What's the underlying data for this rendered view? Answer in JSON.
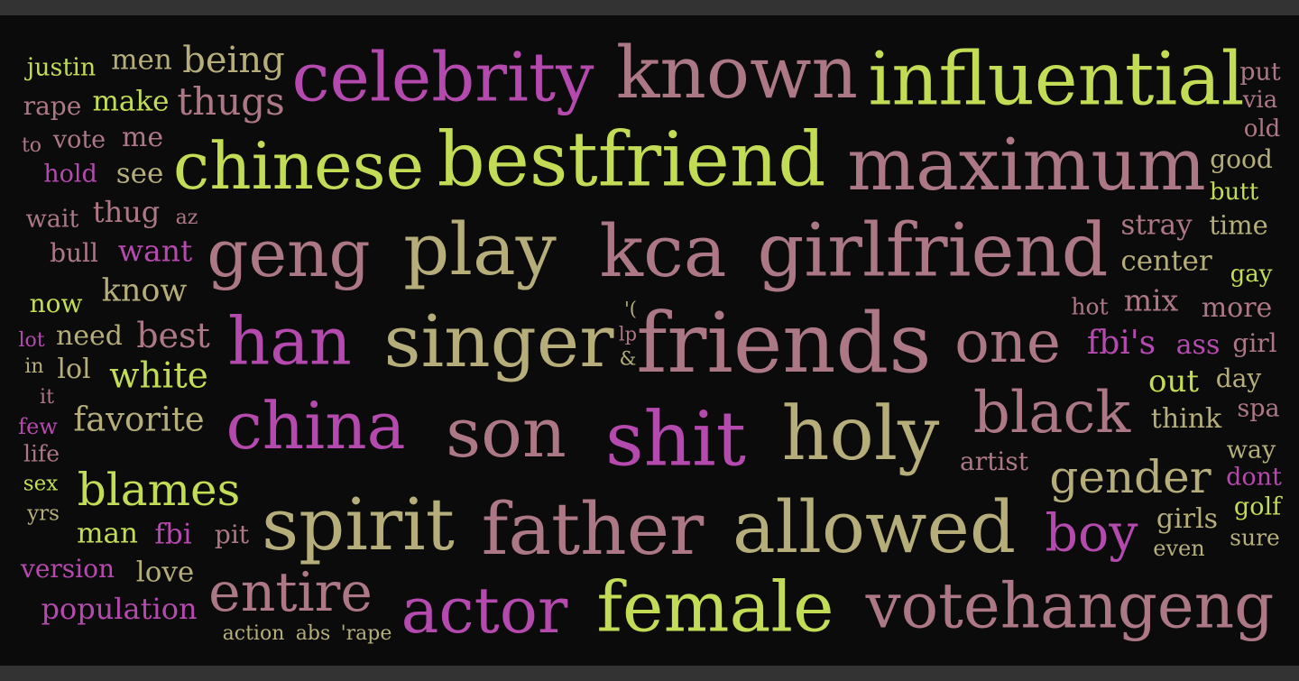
{
  "words": [
    "justin",
    "men",
    "being",
    "celebrity",
    "known",
    "influential",
    "put",
    "rape",
    "make",
    "thugs",
    "via",
    "old",
    "to",
    "vote",
    "me",
    "chinese",
    "bestfriend",
    "maximum",
    "good",
    "hold",
    "see",
    "butt",
    "wait",
    "thug",
    "az",
    "stray",
    "time",
    "bull",
    "want",
    "geng",
    "play",
    "kca",
    "girlfriend",
    "center",
    "now",
    "know",
    "gay",
    "hot",
    "mix",
    "more",
    "lot",
    "need",
    "best",
    "han",
    "singer",
    "'(",
    "lp",
    "&",
    "friends",
    "one",
    "fbi's",
    "ass",
    "girl",
    "in",
    "lol",
    "white",
    "out",
    "day",
    "it",
    "black",
    "spa",
    "few",
    "favorite",
    "china",
    "son",
    "shit",
    "holy",
    "think",
    "life",
    "artist",
    "way",
    "sex",
    "blames",
    "gender",
    "dont",
    "yrs",
    "spirit",
    "father",
    "allowed",
    "boy",
    "girls",
    "golf",
    "man",
    "fbi",
    "pit",
    "sure",
    "even",
    "version",
    "love",
    "entire",
    "population",
    "actor",
    "female",
    "votehangeng",
    "action",
    "abs",
    "'rape"
  ],
  "colors": {
    "background": "#0b0b0b",
    "frame": "#333333",
    "yellow_green": "#c2dc55",
    "mauve": "#ad7886",
    "magenta": "#b44aae",
    "khaki": "#b6ae7a"
  }
}
